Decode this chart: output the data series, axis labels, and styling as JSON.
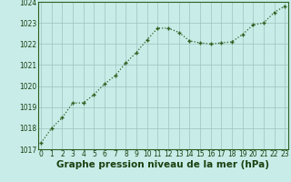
{
  "x": [
    0,
    1,
    2,
    3,
    4,
    5,
    6,
    7,
    8,
    9,
    10,
    11,
    12,
    13,
    14,
    15,
    16,
    17,
    18,
    19,
    20,
    21,
    22,
    23
  ],
  "y": [
    1017.3,
    1018.0,
    1018.5,
    1019.2,
    1019.2,
    1019.6,
    1020.1,
    1020.5,
    1021.1,
    1021.6,
    1022.2,
    1022.75,
    1022.75,
    1022.55,
    1022.15,
    1022.05,
    1022.0,
    1022.05,
    1022.1,
    1022.45,
    1022.9,
    1023.0,
    1023.5,
    1023.8
  ],
  "line_color": "#2d6020",
  "marker": "+",
  "bg_color": "#c8ece8",
  "grid_color": "#9dc4be",
  "xlabel": "Graphe pression niveau de la mer (hPa)",
  "xlabel_fontsize": 7.5,
  "xlabel_color": "#1a4010",
  "xlabel_bold": true,
  "ylim": [
    1017,
    1024
  ],
  "xlim": [
    -0.3,
    23.3
  ],
  "yticks": [
    1017,
    1018,
    1019,
    1020,
    1021,
    1022,
    1023,
    1024
  ],
  "xticks": [
    0,
    1,
    2,
    3,
    4,
    5,
    6,
    7,
    8,
    9,
    10,
    11,
    12,
    13,
    14,
    15,
    16,
    17,
    18,
    19,
    20,
    21,
    22,
    23
  ],
  "tick_fontsize": 5.5,
  "tick_color": "#1a4010",
  "spine_color": "#2d6020",
  "linewidth": 0.9,
  "markersize": 3.5,
  "markeredgewidth": 1.0
}
